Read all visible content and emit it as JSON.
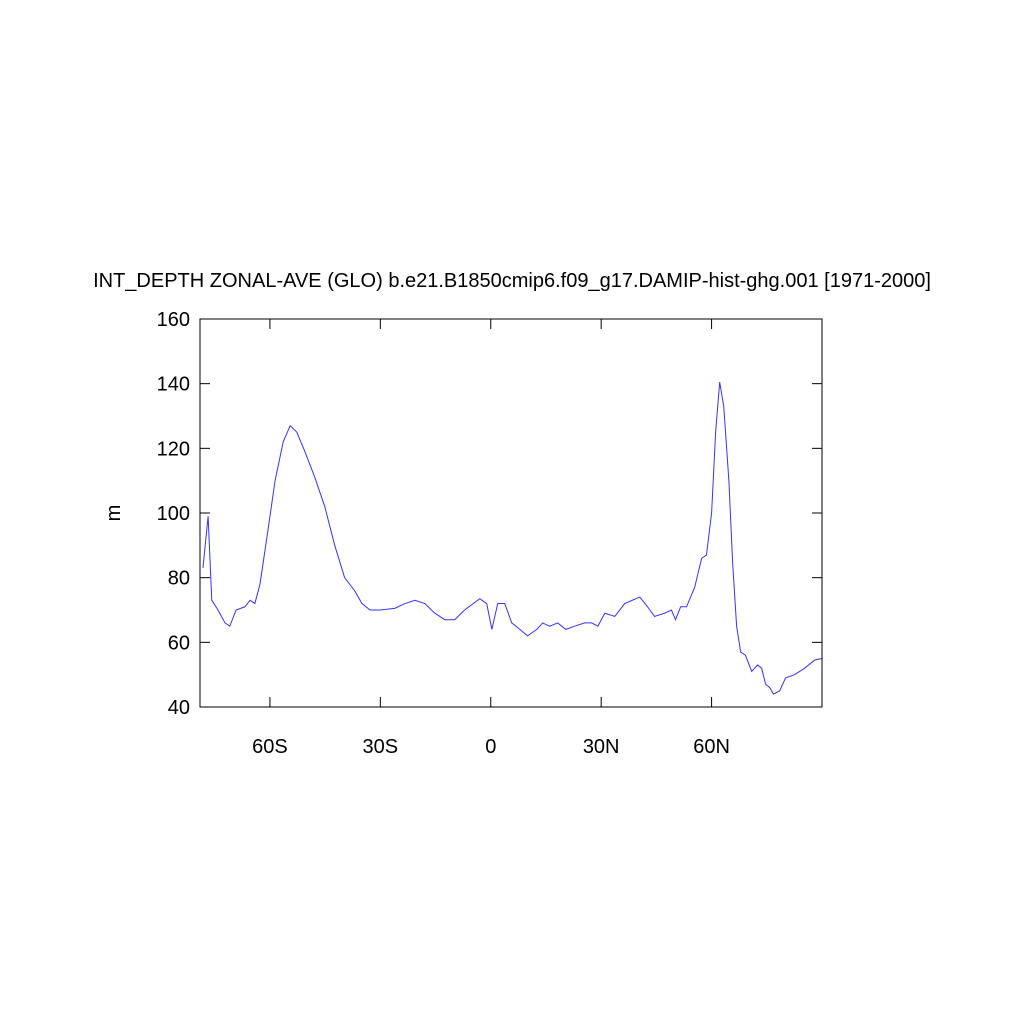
{
  "chart_data": {
    "type": "line",
    "title": "INT_DEPTH ZONAL-AVE (GLO) b.e21.B1850cmip6.f09_g17.DAMIP-hist-ghg.001 [1971-2000]",
    "y_label": "m",
    "x": [
      -78.2,
      -76.8,
      -75.8,
      -74.1,
      -72.2,
      -70.9,
      -69.2,
      -66.8,
      -65.4,
      -64.1,
      -62.7,
      -60.5,
      -58.6,
      -56.4,
      -54.5,
      -52.7,
      -50.5,
      -47.8,
      -45.1,
      -42.4,
      -39.7,
      -37.0,
      -35.0,
      -32.8,
      -30.1,
      -26.1,
      -23.3,
      -20.6,
      -17.9,
      -15.2,
      -12.5,
      -9.8,
      -7.1,
      -3.0,
      -1.1,
      0.3,
      1.9,
      3.8,
      5.7,
      7.9,
      10.0,
      12.5,
      14.1,
      16.0,
      18.2,
      20.4,
      22.8,
      25.5,
      27.4,
      29.1,
      31.0,
      33.7,
      36.4,
      40.5,
      42.6,
      44.5,
      47.2,
      49.1,
      50.2,
      51.6,
      53.2,
      55.4,
      57.3,
      58.6,
      60.0,
      61.1,
      62.2,
      63.3,
      64.7,
      65.7,
      66.8,
      67.9,
      69.2,
      70.9,
      72.5,
      73.6,
      74.7,
      75.8,
      76.8,
      78.5,
      80.1,
      82.5,
      85.3,
      88.0,
      89.9
    ],
    "series": [
      {
        "name": "INT_DEPTH",
        "color": "#3333ff",
        "values": [
          83,
          99,
          73,
          70,
          66,
          65,
          70,
          71,
          73,
          72,
          78,
          95,
          110,
          122,
          127,
          125,
          119,
          111,
          102,
          90,
          80,
          76,
          72,
          70,
          70,
          70.5,
          72,
          73,
          72,
          69,
          67,
          67,
          70,
          73.5,
          72,
          64,
          72,
          72,
          66,
          64,
          62,
          64,
          66,
          65,
          66,
          64,
          65,
          66,
          66,
          65,
          69,
          68,
          72,
          74,
          71,
          68,
          69,
          70,
          67,
          71,
          71,
          77,
          86,
          87,
          100,
          125,
          140.5,
          133,
          110,
          85,
          65,
          57,
          56,
          51,
          53,
          52,
          47,
          46,
          44,
          45,
          49,
          50,
          52,
          54.5,
          55
        ]
      }
    ],
    "xlim": [
      -79,
      90
    ],
    "xticks": [
      {
        "value": -60,
        "label": "60S"
      },
      {
        "value": -30,
        "label": "30S"
      },
      0,
      {
        "value": 30,
        "label": "30N"
      },
      {
        "value": 60,
        "label": "60N"
      }
    ],
    "ylim": [
      40,
      160
    ],
    "yticks": [
      40,
      60,
      80,
      100,
      120,
      140,
      160
    ]
  }
}
